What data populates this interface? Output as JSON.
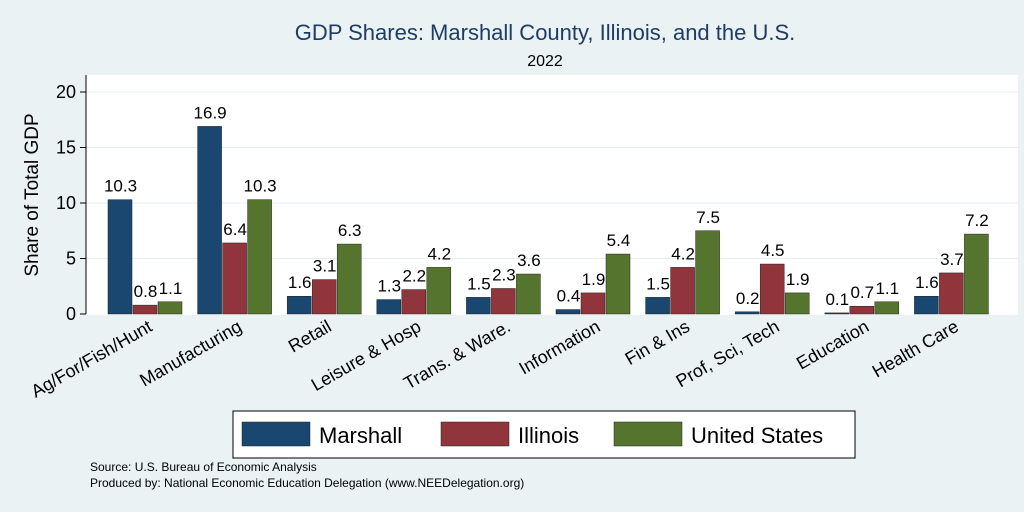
{
  "chart_data": {
    "type": "bar",
    "title": "GDP Shares: Marshall County, Illinois, and the U.S.",
    "subtitle": "2022",
    "ylabel": "Share of Total GDP",
    "xlabel": "",
    "ylim": [
      0,
      22
    ],
    "yticks": [
      0,
      5,
      10,
      15,
      20
    ],
    "grid": true,
    "legend_position": "bottom",
    "categories": [
      "Ag/For/Fish/Hunt",
      "Manufacturing",
      "Retail",
      "Leisure & Hosp",
      "Trans. & Ware.",
      "Information",
      "Fin & Ins",
      "Prof, Sci, Tech",
      "Education",
      "Health Care"
    ],
    "series": [
      {
        "name": "Marshall",
        "color": "#1a476f",
        "values": [
          10.3,
          16.9,
          1.6,
          1.3,
          1.5,
          0.4,
          1.5,
          0.2,
          0.1,
          1.6
        ]
      },
      {
        "name": "Illinois",
        "color": "#90353b",
        "values": [
          0.8,
          6.4,
          3.1,
          2.2,
          2.3,
          1.9,
          4.2,
          4.5,
          0.7,
          3.7
        ]
      },
      {
        "name": "United States",
        "color": "#55752f",
        "values": [
          1.1,
          10.3,
          6.3,
          4.2,
          3.6,
          5.4,
          7.5,
          1.9,
          1.1,
          7.2
        ]
      }
    ]
  },
  "footer": {
    "source": "Source: U.S. Bureau of Economic Analysis",
    "produced_by": "Produced by: National Economic Education Delegation (www.NEEDelegation.org)"
  }
}
